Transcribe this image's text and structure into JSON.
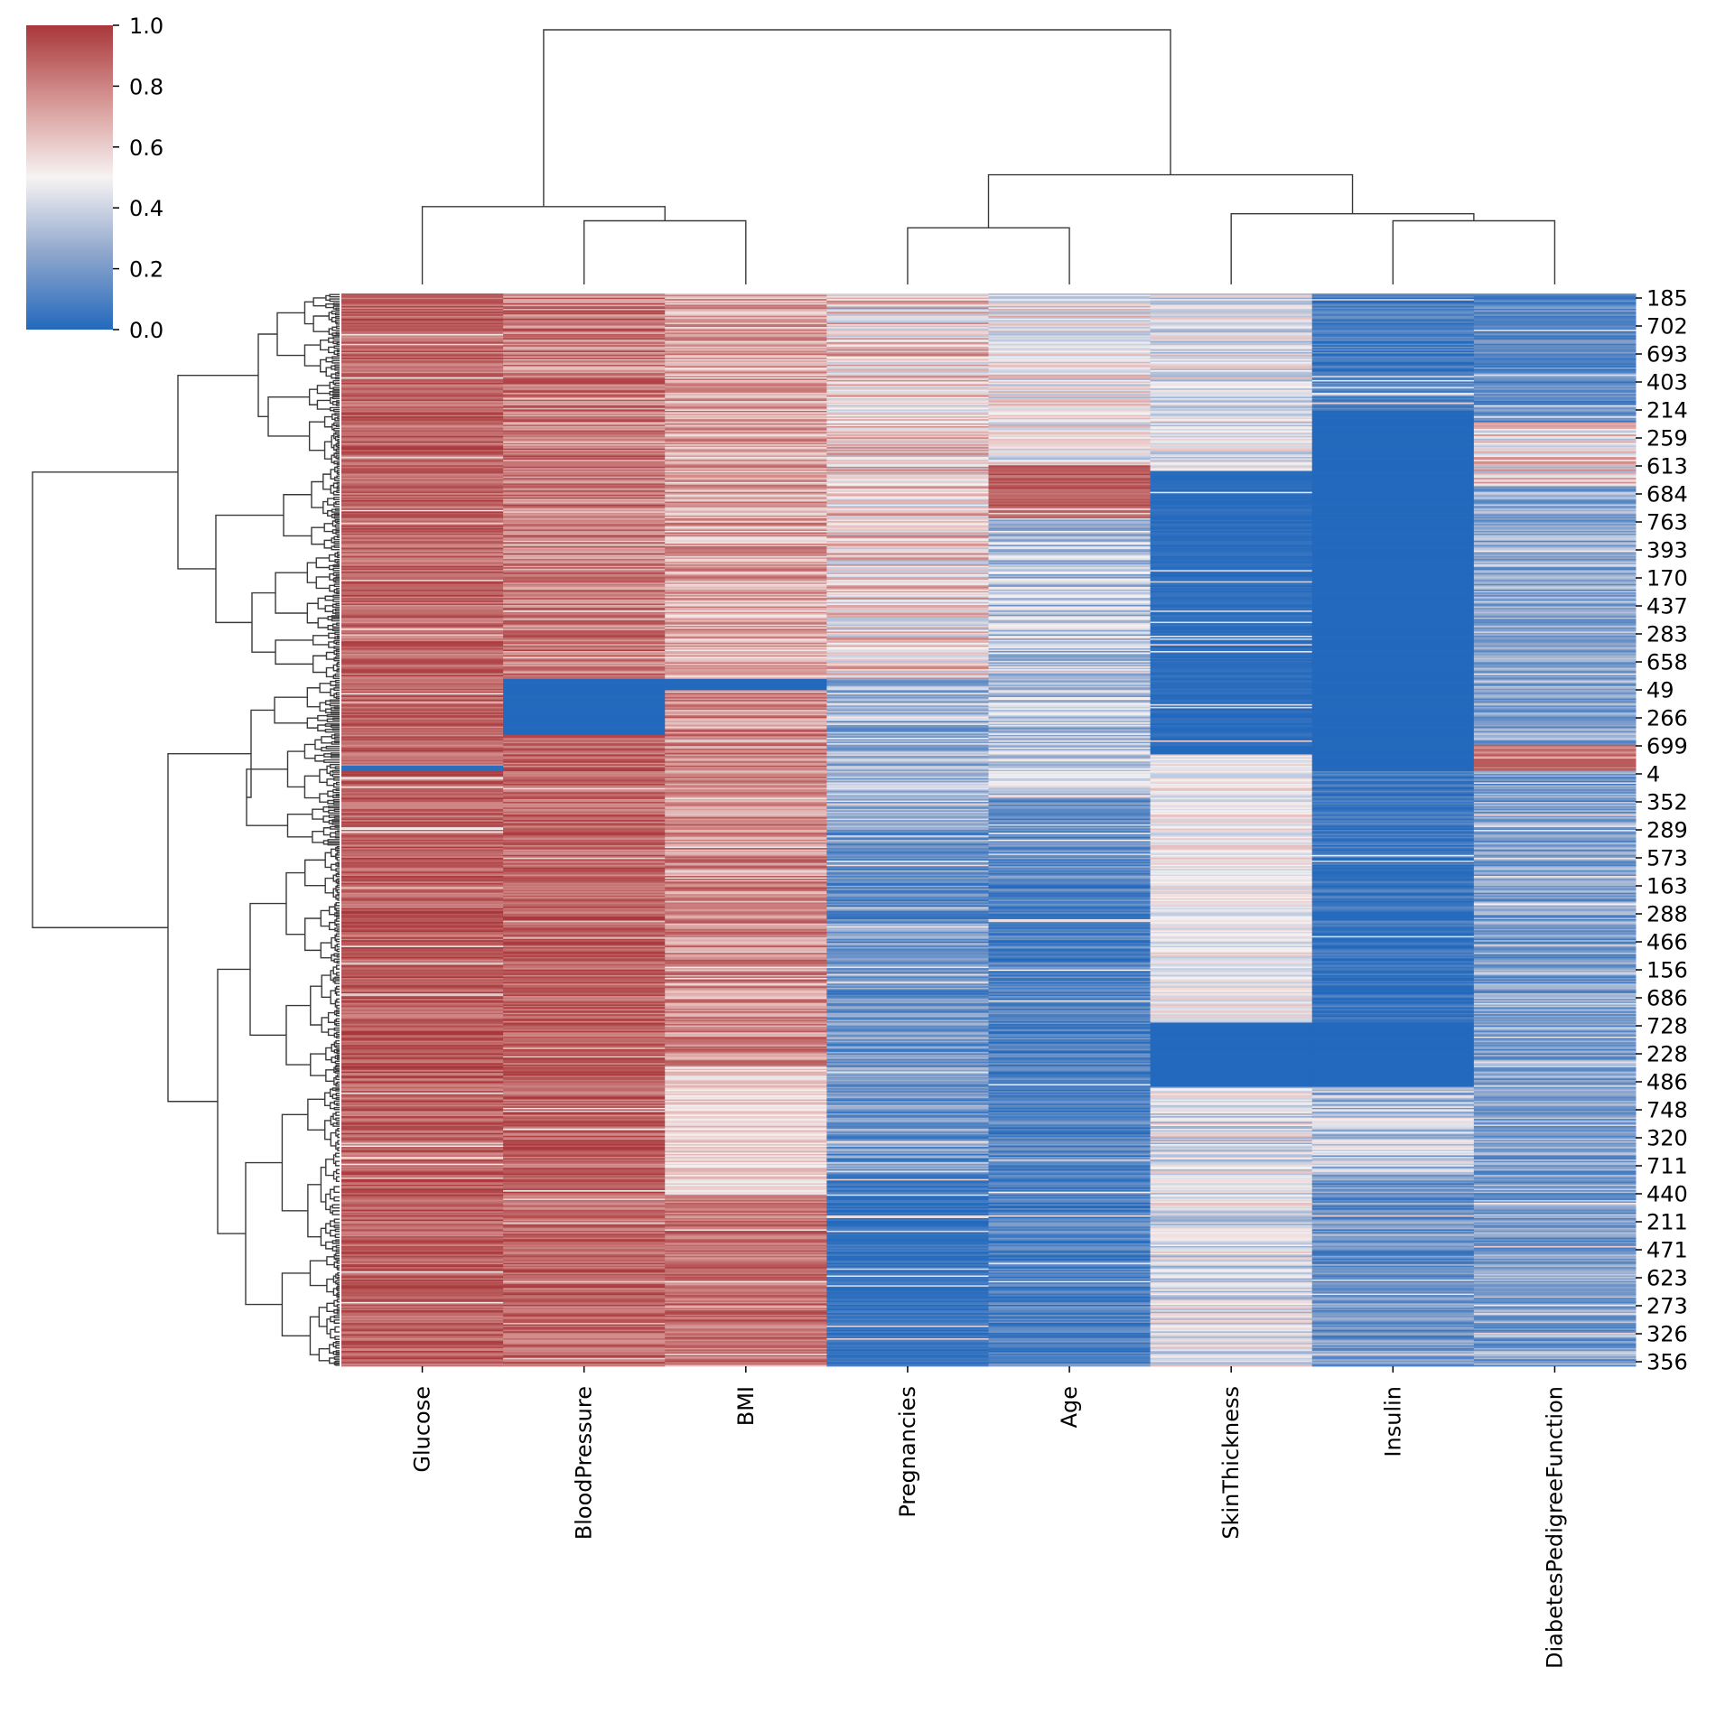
{
  "chart_data": {
    "type": "heatmap",
    "subtype": "clustermap",
    "title": "",
    "xlabel": "",
    "ylabel": "",
    "colormap": "vlag",
    "colormap_colors": [
      "#2369bd",
      "#a9bcd9",
      "#f5f1f1",
      "#e0a9a7",
      "#a9373b"
    ],
    "value_range": [
      0.0,
      1.0
    ],
    "colorbar": {
      "placement": "top-left",
      "ticks": [
        0.0,
        0.2,
        0.4,
        0.6,
        0.8,
        1.0
      ],
      "tick_labels": [
        "0.0",
        "0.2",
        "0.4",
        "0.6",
        "0.8",
        "1.0"
      ]
    },
    "columns": [
      "Glucose",
      "BloodPressure",
      "BMI",
      "Pregnancies",
      "Age",
      "SkinThickness",
      "Insulin",
      "DiabetesPedigreeFunction"
    ],
    "column_dendrogram": {
      "merges": [
        {
          "left": "BloodPressure",
          "right": "BMI",
          "height": 0.46
        },
        {
          "left": "Insulin",
          "right": "DiabetesPedigreeFunction",
          "height": 0.46
        },
        {
          "left": "Pregnancies",
          "right": "Age",
          "height": 0.44
        },
        {
          "left": "SkinThickness",
          "right": "Insulin+DiabetesPedigreeFunction",
          "height": 0.48
        },
        {
          "left": "Glucose",
          "right": "BloodPressure+BMI",
          "height": 0.5
        },
        {
          "left": "Pregnancies+Age",
          "right": "SkinThickness+Insulin+DiabetesPedigreeFunction",
          "height": 0.59
        },
        {
          "left": "Glucose+BloodPressure+BMI",
          "right": "Pregnancies+Age+SkinThickness+Insulin+DiabetesPedigreeFunction",
          "height": 1.0
        }
      ]
    },
    "row_count_approx": 768,
    "row_tick_labels": [
      "185",
      "702",
      "693",
      "403",
      "214",
      "259",
      "613",
      "684",
      "763",
      "393",
      "170",
      "437",
      "283",
      "658",
      "49",
      "266",
      "699",
      "4",
      "352",
      "289",
      "573",
      "163",
      "288",
      "466",
      "156",
      "686",
      "728",
      "228",
      "486",
      "748",
      "320",
      "711",
      "440",
      "211",
      "471",
      "623",
      "273",
      "326",
      "356"
    ],
    "row_dendrogram": {
      "description": "hierarchical clustering of rows; two main clusters split near row label 658/49",
      "top_clusters": [
        {
          "rows_from": "185",
          "rows_to": "658",
          "merge_height": 0.55
        },
        {
          "rows_from": "49",
          "rows_to": "356",
          "merge_height": 0.66
        }
      ],
      "root_height": 1.0
    },
    "column_bands": {
      "Glucose": [
        [
          0.0,
          0.44,
          0.88,
          0.12
        ],
        [
          0.44,
          0.445,
          0.02,
          0.0
        ],
        [
          0.445,
          1.0,
          0.9,
          0.12
        ]
      ],
      "BloodPressure": [
        [
          0.0,
          0.36,
          0.82,
          0.16
        ],
        [
          0.36,
          0.412,
          0.0,
          0.0
        ],
        [
          0.412,
          1.0,
          0.88,
          0.12
        ]
      ],
      "BMI": [
        [
          0.0,
          0.36,
          0.7,
          0.18
        ],
        [
          0.36,
          0.37,
          0.0,
          0.0
        ],
        [
          0.37,
          0.72,
          0.78,
          0.16
        ],
        [
          0.72,
          0.84,
          0.58,
          0.12
        ],
        [
          0.84,
          1.0,
          0.85,
          0.12
        ]
      ],
      "Pregnancies": [
        [
          0.0,
          0.36,
          0.58,
          0.26
        ],
        [
          0.36,
          0.5,
          0.28,
          0.18
        ],
        [
          0.5,
          0.82,
          0.18,
          0.16
        ],
        [
          0.82,
          1.0,
          0.05,
          0.06
        ]
      ],
      "Age": [
        [
          0.0,
          0.16,
          0.5,
          0.22
        ],
        [
          0.16,
          0.21,
          0.9,
          0.08
        ],
        [
          0.21,
          0.47,
          0.36,
          0.2
        ],
        [
          0.47,
          0.55,
          0.15,
          0.12
        ],
        [
          0.55,
          1.0,
          0.1,
          0.12
        ]
      ],
      "SkinThickness": [
        [
          0.0,
          0.165,
          0.46,
          0.18
        ],
        [
          0.165,
          0.43,
          0.02,
          0.03
        ],
        [
          0.43,
          0.68,
          0.5,
          0.14
        ],
        [
          0.68,
          0.74,
          0.0,
          0.0
        ],
        [
          0.74,
          1.0,
          0.45,
          0.2
        ]
      ],
      "Insulin": [
        [
          0.0,
          0.11,
          0.08,
          0.1
        ],
        [
          0.11,
          0.445,
          0.0,
          0.0
        ],
        [
          0.445,
          0.68,
          0.06,
          0.08
        ],
        [
          0.68,
          0.74,
          0.0,
          0.0
        ],
        [
          0.74,
          0.82,
          0.38,
          0.22
        ],
        [
          0.82,
          1.0,
          0.18,
          0.14
        ]
      ],
      "DiabetesPedigreeFunction": [
        [
          0.0,
          0.12,
          0.15,
          0.12
        ],
        [
          0.12,
          0.18,
          0.55,
          0.25
        ],
        [
          0.18,
          0.42,
          0.25,
          0.15
        ],
        [
          0.42,
          0.445,
          0.85,
          0.1
        ],
        [
          0.445,
          1.0,
          0.22,
          0.16
        ]
      ]
    }
  }
}
